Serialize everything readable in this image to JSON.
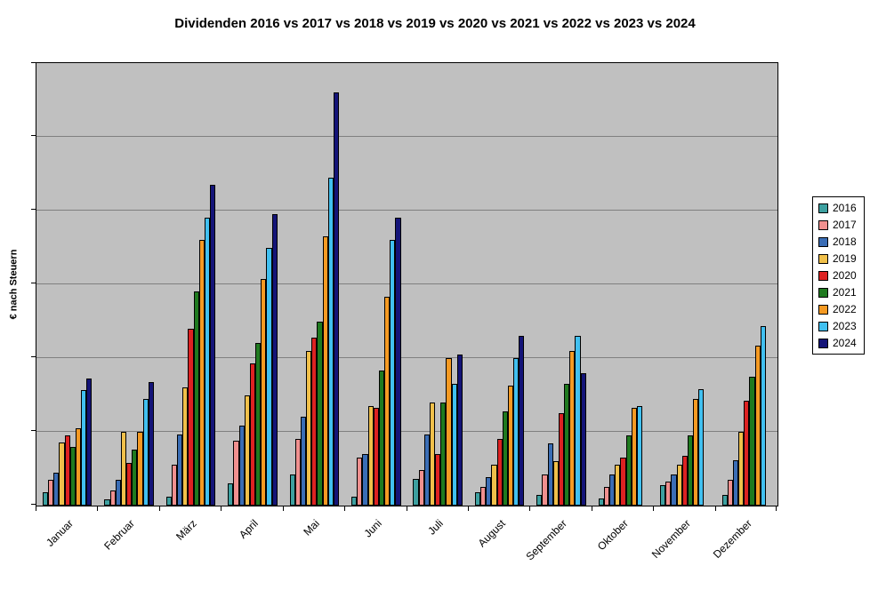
{
  "chart_data": {
    "type": "bar",
    "title": "Dividenden 2016 vs 2017 vs 2018 vs 2019 vs 2020 vs 2021 vs 2022 vs 2023 vs 2024",
    "xlabel": "",
    "ylabel": "€ nach Steuern",
    "ylim": [
      0,
      600
    ],
    "gridline_step": 100,
    "grid": true,
    "legend_position": "right",
    "plot_background": "#c0c0c0",
    "gridline_color": "#808080",
    "categories": [
      "Januar",
      "Februar",
      "März",
      "April",
      "Mai",
      "Juni",
      "Juli",
      "August",
      "September",
      "Oktober",
      "November",
      "Dezember"
    ],
    "series": [
      {
        "name": "2016",
        "color": "#3da0a0",
        "values": [
          18,
          8,
          12,
          30,
          42,
          12,
          36,
          18,
          14,
          10,
          28,
          15
        ]
      },
      {
        "name": "2017",
        "color": "#f0908f",
        "values": [
          35,
          20,
          55,
          88,
          90,
          65,
          48,
          25,
          42,
          25,
          32,
          35
        ]
      },
      {
        "name": "2018",
        "color": "#3a6db5",
        "values": [
          45,
          35,
          96,
          108,
          120,
          70,
          96,
          38,
          84,
          42,
          42,
          62
        ]
      },
      {
        "name": "2019",
        "color": "#f0c04a",
        "values": [
          85,
          100,
          160,
          150,
          210,
          135,
          140,
          55,
          60,
          55,
          55,
          100
        ]
      },
      {
        "name": "2020",
        "color": "#dd2222",
        "values": [
          95,
          58,
          240,
          193,
          228,
          133,
          70,
          90,
          125,
          65,
          68,
          142
        ]
      },
      {
        "name": "2021",
        "color": "#1f7a1f",
        "values": [
          80,
          76,
          290,
          220,
          250,
          183,
          140,
          128,
          165,
          95,
          95,
          175
        ]
      },
      {
        "name": "2022",
        "color": "#f59a23",
        "values": [
          105,
          100,
          360,
          307,
          365,
          283,
          200,
          163,
          210,
          133,
          145,
          217
        ]
      },
      {
        "name": "2023",
        "color": "#41c0f0",
        "values": [
          157,
          145,
          390,
          350,
          445,
          360,
          165,
          200,
          230,
          135,
          158,
          243
        ]
      },
      {
        "name": "2024",
        "color": "#141478",
        "values": [
          172,
          168,
          435,
          395,
          560,
          390,
          205,
          230,
          180,
          0,
          0,
          0
        ]
      }
    ]
  }
}
